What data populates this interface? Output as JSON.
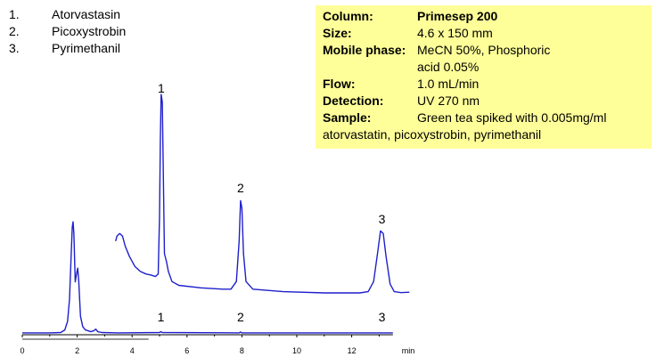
{
  "legend": [
    {
      "num": "1.",
      "name": "Atorvastasin"
    },
    {
      "num": "2.",
      "name": "Picoxystrobin"
    },
    {
      "num": "3.",
      "name": "Pyrimethanil"
    }
  ],
  "conditions": [
    {
      "key": "Column:",
      "value": "Primesep 200",
      "bold": true
    },
    {
      "key": "Size:",
      "value": "4.6 x 150 mm"
    },
    {
      "key": "Mobile phase:",
      "value": "MeCN 50%, Phosphoric"
    },
    {
      "key": "",
      "value": "acid 0.05%"
    },
    {
      "key": "Flow:",
      "value": "1.0 mL/min"
    },
    {
      "key": "Detection:",
      "value": "UV 270 nm"
    },
    {
      "key": "Sample:",
      "value": "Green tea spiked with 0.005mg/ml"
    }
  ],
  "sample_continuation": "atorvastatin, picoxystrobin, pyrimethanil",
  "colors": {
    "trace": "#1f1fcc",
    "axis": "#000000",
    "panel": "#ffff99"
  },
  "chart_data": {
    "type": "line",
    "xlabel": "min",
    "xlim": [
      0,
      13.5
    ],
    "ylim": [
      0,
      100
    ],
    "x_ticks": [
      0,
      2,
      4,
      6,
      8,
      10,
      12
    ],
    "grid": false,
    "series": [
      {
        "points": [
          [
            0,
            0.3
          ],
          [
            1.0,
            0.3
          ],
          [
            1.4,
            0.5
          ],
          [
            1.55,
            2
          ],
          [
            1.65,
            7
          ],
          [
            1.72,
            20
          ],
          [
            1.78,
            45
          ],
          [
            1.82,
            62
          ],
          [
            1.85,
            65
          ],
          [
            1.88,
            58
          ],
          [
            1.93,
            30
          ],
          [
            1.98,
            35
          ],
          [
            2.02,
            38
          ],
          [
            2.06,
            30
          ],
          [
            2.12,
            10
          ],
          [
            2.2,
            4
          ],
          [
            2.3,
            2
          ],
          [
            2.4,
            1.5
          ],
          [
            2.5,
            1
          ],
          [
            2.6,
            1.5
          ],
          [
            2.68,
            2.5
          ],
          [
            2.75,
            1
          ],
          [
            2.9,
            0.5
          ],
          [
            3.5,
            0.3
          ],
          [
            5.0,
            0.5
          ],
          [
            5.05,
            1
          ],
          [
            5.1,
            0.5
          ],
          [
            7.9,
            0.3
          ],
          [
            7.95,
            0.8
          ],
          [
            8.0,
            0.3
          ],
          [
            13.5,
            0.3
          ]
        ],
        "peak_labels": [
          {
            "label": "1",
            "x": 5.05
          },
          {
            "label": "2",
            "x": 7.95
          },
          {
            "label": "3",
            "x": 13.1
          }
        ]
      },
      {
        "points": [
          [
            3.4,
            30
          ],
          [
            3.45,
            32
          ],
          [
            3.55,
            33
          ],
          [
            3.65,
            32
          ],
          [
            3.75,
            28
          ],
          [
            3.9,
            24
          ],
          [
            4.1,
            20
          ],
          [
            4.3,
            18
          ],
          [
            4.5,
            17
          ],
          [
            4.7,
            16.5
          ],
          [
            4.85,
            16
          ],
          [
            4.95,
            17
          ],
          [
            5.0,
            40
          ],
          [
            5.03,
            70
          ],
          [
            5.06,
            88
          ],
          [
            5.1,
            85
          ],
          [
            5.14,
            55
          ],
          [
            5.18,
            25
          ],
          [
            5.25,
            22
          ],
          [
            5.32,
            18
          ],
          [
            5.45,
            14
          ],
          [
            5.7,
            12.5
          ],
          [
            6.5,
            11.5
          ],
          [
            7.3,
            11
          ],
          [
            7.6,
            11
          ],
          [
            7.8,
            14
          ],
          [
            7.9,
            30
          ],
          [
            7.95,
            46
          ],
          [
            8.0,
            43
          ],
          [
            8.06,
            25
          ],
          [
            8.15,
            14
          ],
          [
            8.4,
            11
          ],
          [
            9.5,
            10
          ],
          [
            11,
            9.5
          ],
          [
            12.3,
            9.5
          ],
          [
            12.6,
            10
          ],
          [
            12.8,
            14
          ],
          [
            12.95,
            26
          ],
          [
            13.05,
            34
          ],
          [
            13.15,
            33
          ],
          [
            13.25,
            24
          ],
          [
            13.4,
            13
          ],
          [
            13.55,
            10
          ],
          [
            13.8,
            9.6
          ],
          [
            14.1,
            9.8
          ]
        ],
        "peak_labels": [
          {
            "label": "1",
            "x": 5.06
          },
          {
            "label": "2",
            "x": 7.95
          },
          {
            "label": "3",
            "x": 13.1
          }
        ]
      }
    ]
  }
}
